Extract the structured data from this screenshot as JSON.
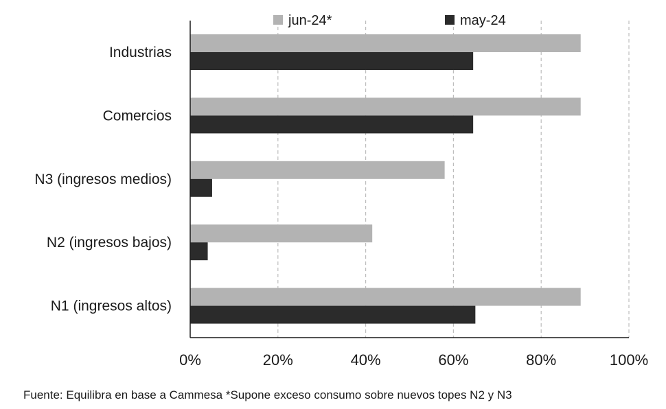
{
  "chart_data": {
    "type": "bar",
    "orientation": "horizontal",
    "categories": [
      "Industrias",
      "Comercios",
      "N3 (ingresos medios)",
      "N2 (ingresos bajos)",
      "N1 (ingresos altos)"
    ],
    "series": [
      {
        "name": "jun-24*",
        "color": "#b3b3b3",
        "values": [
          89,
          89,
          58,
          41.5,
          89
        ]
      },
      {
        "name": "may-24",
        "color": "#2b2b2b",
        "values": [
          64.5,
          64.5,
          5,
          4,
          65
        ]
      }
    ],
    "xlim": [
      0,
      100
    ],
    "x_ticks": [
      0,
      20,
      40,
      60,
      80,
      100
    ],
    "x_tick_labels": [
      "0%",
      "20%",
      "40%",
      "60%",
      "80%",
      "100%"
    ],
    "grid": "vertical-dashed",
    "legend_position": "top"
  },
  "source_note": "Fuente: Equilibra en base a Cammesa *Supone exceso consumo sobre nuevos topes N2 y N3"
}
